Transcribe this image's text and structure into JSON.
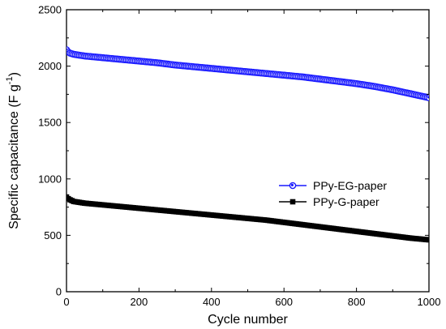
{
  "chart_data": {
    "type": "line",
    "xlabel": "Cycle number",
    "ylabel": {
      "main": "Specific capacitance (F g",
      "superscript": "-1",
      "close": ")"
    },
    "xlim": [
      0,
      1000
    ],
    "ylim": [
      0,
      2500
    ],
    "xticks": [
      "0",
      "200",
      "400",
      "600",
      "800",
      "1000"
    ],
    "yticks": [
      "0",
      "500",
      "1000",
      "1500",
      "2000",
      "2500"
    ],
    "grid": false,
    "legend_position": "center-right",
    "series": [
      {
        "name": "PPy-EG-paper",
        "color": "#1a1aff",
        "marker": "circle",
        "x": [
          0,
          5,
          10,
          20,
          50,
          100,
          150,
          200,
          250,
          300,
          350,
          400,
          450,
          500,
          550,
          600,
          650,
          700,
          750,
          800,
          850,
          900,
          950,
          1000
        ],
        "y": [
          2145,
          2125,
          2115,
          2105,
          2090,
          2075,
          2060,
          2045,
          2030,
          2010,
          1995,
          1980,
          1965,
          1950,
          1935,
          1920,
          1905,
          1885,
          1865,
          1845,
          1820,
          1790,
          1755,
          1720
        ]
      },
      {
        "name": "PPy-G-paper",
        "color": "#000000",
        "marker": "square",
        "x": [
          0,
          5,
          10,
          20,
          50,
          100,
          150,
          200,
          250,
          300,
          350,
          400,
          450,
          500,
          550,
          600,
          650,
          700,
          750,
          800,
          850,
          900,
          950,
          1000
        ],
        "y": [
          840,
          825,
          815,
          800,
          785,
          770,
          755,
          740,
          725,
          710,
          695,
          680,
          665,
          650,
          635,
          615,
          595,
          575,
          555,
          535,
          515,
          495,
          475,
          460
        ]
      }
    ]
  }
}
